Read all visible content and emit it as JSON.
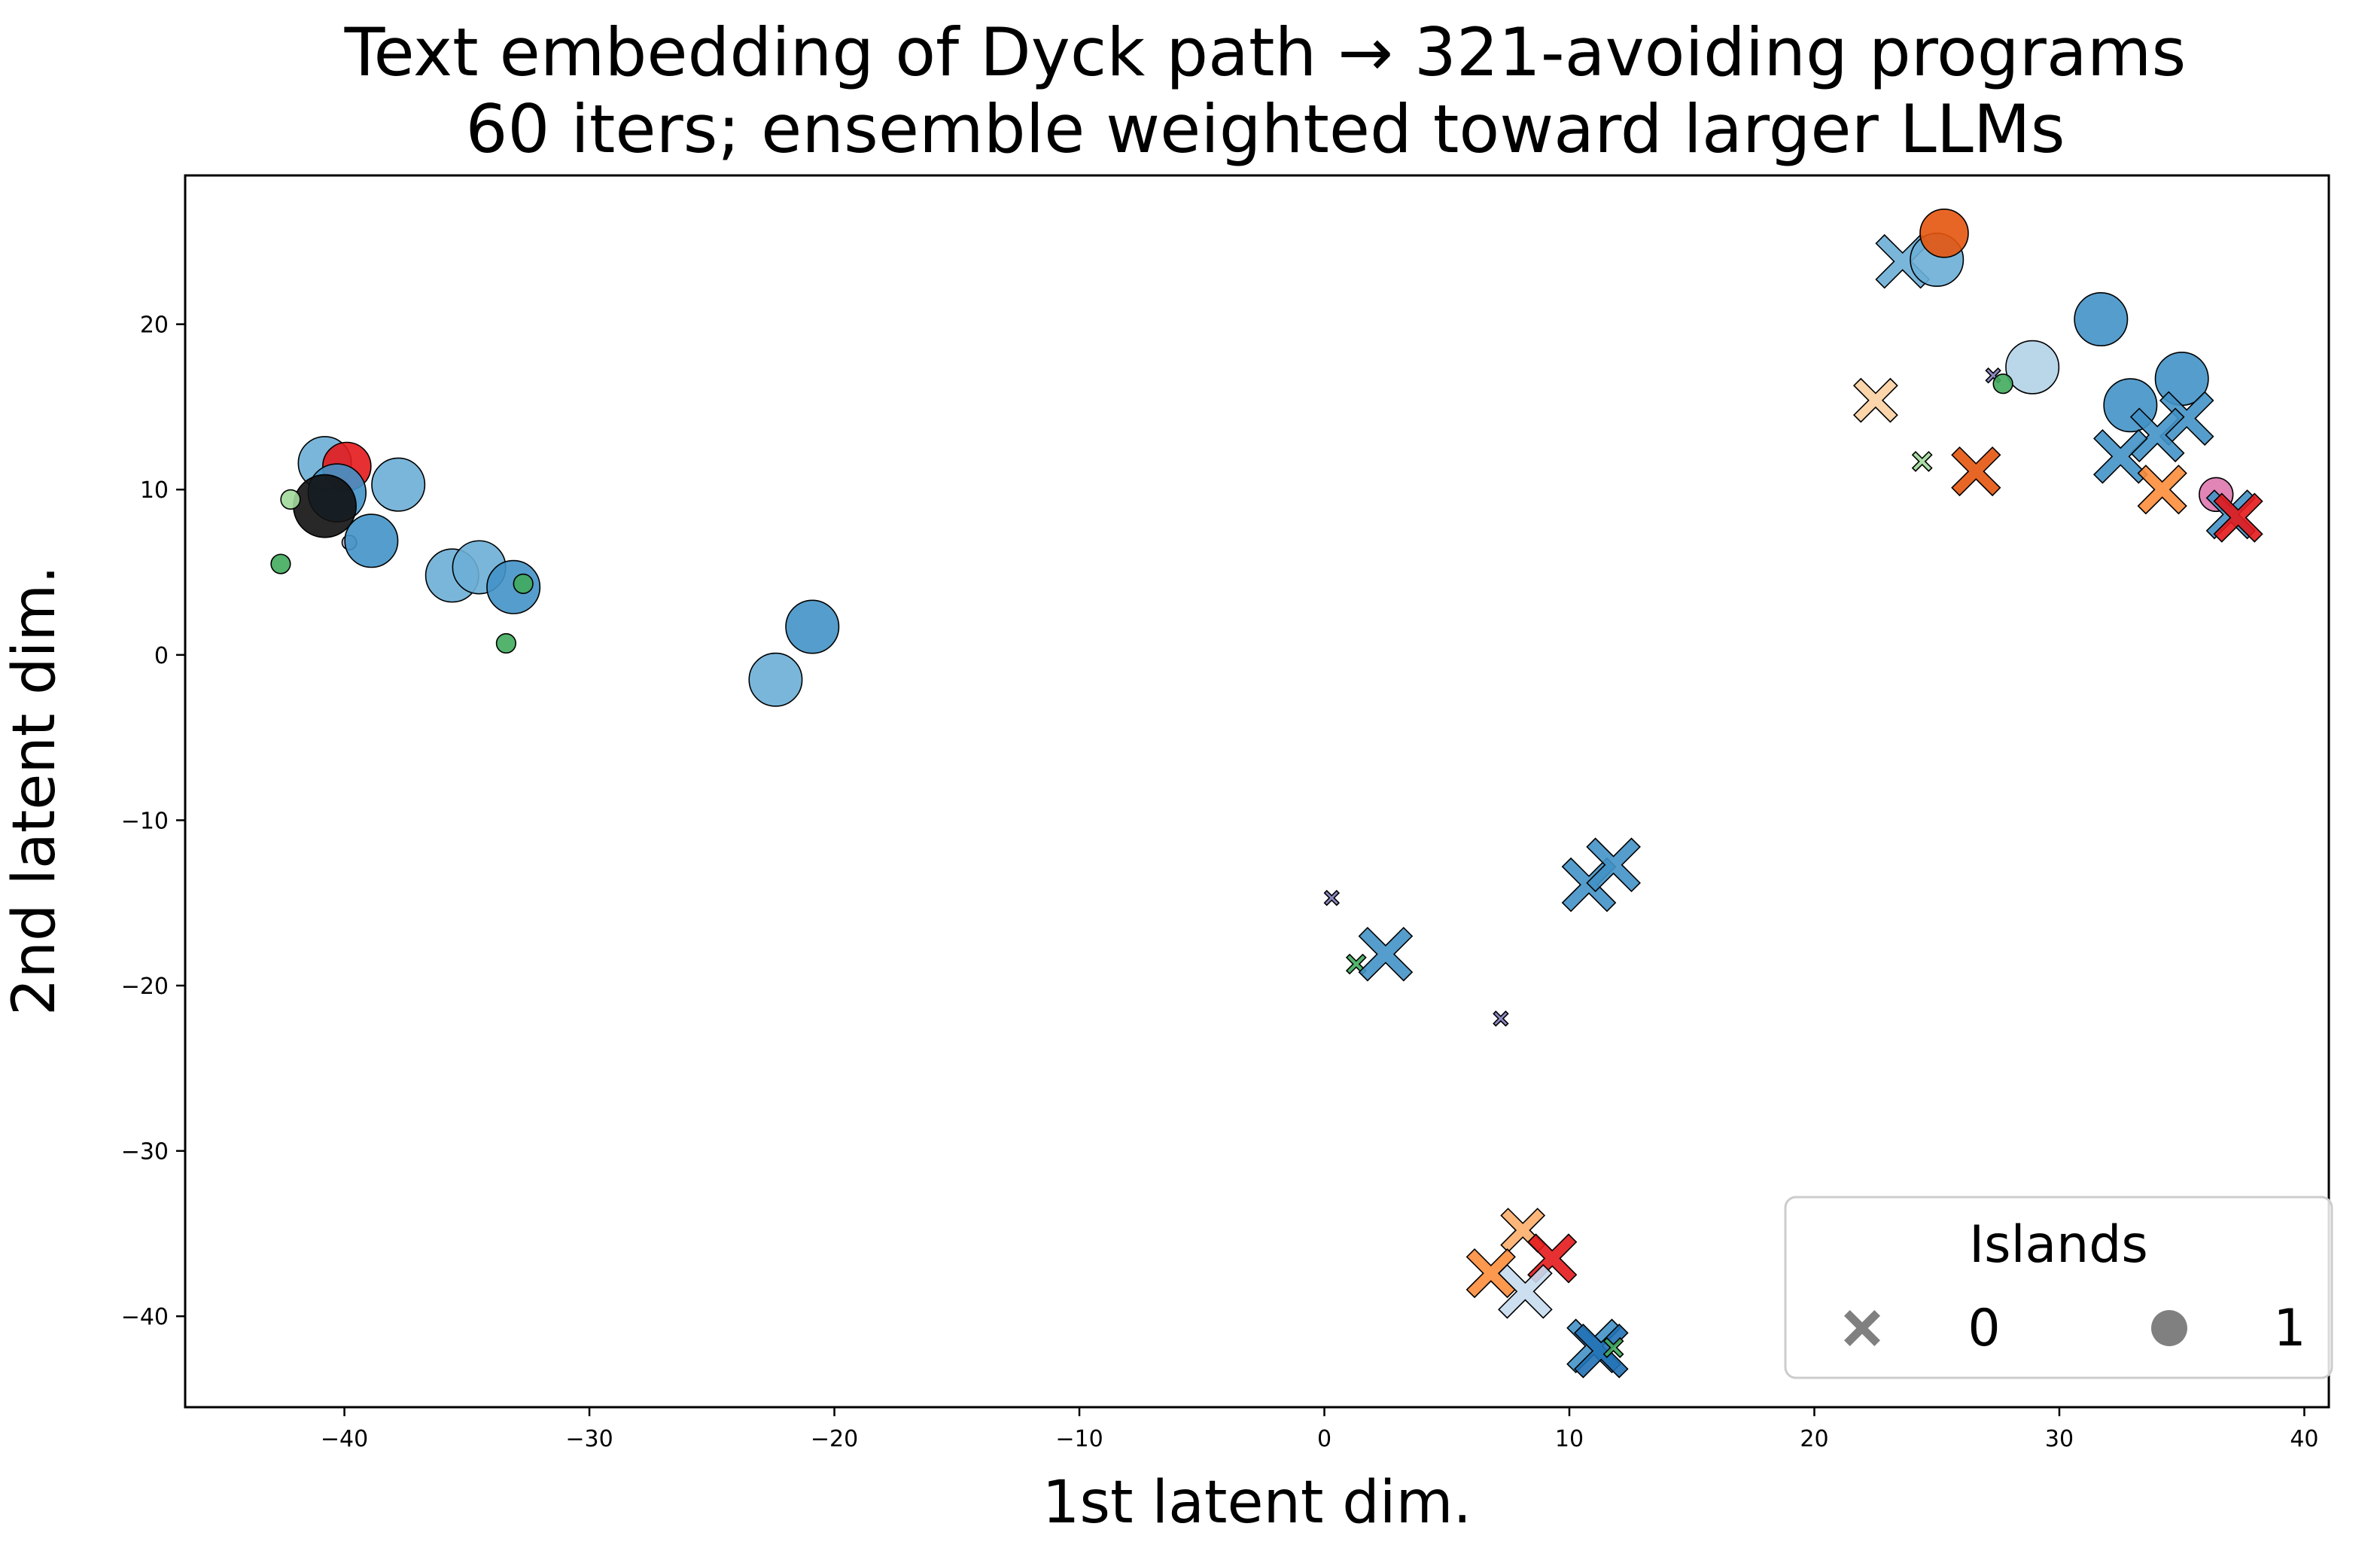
{
  "chart_data": {
    "type": "scatter",
    "title_lines": [
      "Text embedding of Dyck path → 321-avoiding programs",
      "60 iters; ensemble weighted toward larger LLMs"
    ],
    "xlabel": "1st latent dim.",
    "ylabel": "2nd latent dim.",
    "xlim": [
      -46.5,
      41
    ],
    "ylim": [
      -45.5,
      29
    ],
    "xticks": [
      -40,
      -30,
      -20,
      -10,
      0,
      10,
      20,
      30,
      40
    ],
    "yticks": [
      -40,
      -30,
      -20,
      -10,
      0,
      10,
      20
    ],
    "grid": false,
    "legend": {
      "title": "Islands",
      "placement": "lower-right",
      "entries": [
        {
          "label": "0",
          "marker": "x"
        },
        {
          "label": "1",
          "marker": "o"
        }
      ],
      "color": "#808080"
    },
    "points": [
      {
        "x": -40.8,
        "y": 11.6,
        "island": 1,
        "size": 11,
        "color": "#6baed6"
      },
      {
        "x": -39.9,
        "y": 11.4,
        "island": 1,
        "size": 10,
        "color": "#e41a1c"
      },
      {
        "x": -40.3,
        "y": 9.8,
        "island": 1,
        "size": 12,
        "color": "#4292c6"
      },
      {
        "x": -37.8,
        "y": 10.3,
        "island": 1,
        "size": 11,
        "color": "#6baed6"
      },
      {
        "x": -40.8,
        "y": 9.0,
        "island": 1,
        "size": 13,
        "color": "#111111"
      },
      {
        "x": -42.2,
        "y": 9.4,
        "island": 1,
        "size": 4,
        "color": "#a1d99b"
      },
      {
        "x": -39.8,
        "y": 6.8,
        "island": 1,
        "size": 3,
        "color": "#bcbddc"
      },
      {
        "x": -38.9,
        "y": 6.9,
        "island": 1,
        "size": 11,
        "color": "#4292c6"
      },
      {
        "x": -42.6,
        "y": 5.5,
        "island": 1,
        "size": 4,
        "color": "#41ab5d"
      },
      {
        "x": -35.6,
        "y": 4.8,
        "island": 1,
        "size": 11,
        "color": "#6baed6"
      },
      {
        "x": -34.5,
        "y": 5.3,
        "island": 1,
        "size": 11,
        "color": "#6baed6"
      },
      {
        "x": -33.1,
        "y": 4.1,
        "island": 1,
        "size": 11,
        "color": "#4292c6"
      },
      {
        "x": -32.7,
        "y": 4.3,
        "island": 1,
        "size": 4,
        "color": "#41ab5d"
      },
      {
        "x": -33.4,
        "y": 0.7,
        "island": 1,
        "size": 4,
        "color": "#41ab5d"
      },
      {
        "x": -20.9,
        "y": 1.7,
        "island": 1,
        "size": 11,
        "color": "#4292c6"
      },
      {
        "x": -22.4,
        "y": -1.5,
        "island": 1,
        "size": 11,
        "color": "#6baed6"
      },
      {
        "x": 23.6,
        "y": 23.8,
        "island": 0,
        "size": 11,
        "color": "#6baed6"
      },
      {
        "x": 25.0,
        "y": 23.9,
        "island": 1,
        "size": 11,
        "color": "#6baed6"
      },
      {
        "x": 25.3,
        "y": 25.5,
        "island": 1,
        "size": 10,
        "color": "#e6550d"
      },
      {
        "x": 31.7,
        "y": 20.3,
        "island": 1,
        "size": 11,
        "color": "#4292c6"
      },
      {
        "x": 28.9,
        "y": 17.4,
        "island": 1,
        "size": 11,
        "color": "#b3d3e8"
      },
      {
        "x": 27.3,
        "y": 16.9,
        "island": 0,
        "size": 3,
        "color": "#807dba"
      },
      {
        "x": 27.7,
        "y": 16.4,
        "island": 1,
        "size": 4,
        "color": "#41ab5d"
      },
      {
        "x": 22.5,
        "y": 15.4,
        "island": 0,
        "size": 9,
        "color": "#fdd0a2"
      },
      {
        "x": 32.9,
        "y": 15.1,
        "island": 1,
        "size": 11,
        "color": "#4292c6"
      },
      {
        "x": 35.0,
        "y": 16.7,
        "island": 1,
        "size": 11,
        "color": "#4292c6"
      },
      {
        "x": 35.2,
        "y": 14.3,
        "island": 0,
        "size": 11,
        "color": "#4292c6"
      },
      {
        "x": 34.0,
        "y": 13.3,
        "island": 0,
        "size": 11,
        "color": "#4292c6"
      },
      {
        "x": 32.5,
        "y": 12.0,
        "island": 0,
        "size": 11,
        "color": "#4292c6"
      },
      {
        "x": 24.4,
        "y": 11.7,
        "island": 0,
        "size": 4,
        "color": "#a1d99b"
      },
      {
        "x": 26.6,
        "y": 11.1,
        "island": 0,
        "size": 10,
        "color": "#e6550d"
      },
      {
        "x": 34.2,
        "y": 10.0,
        "island": 0,
        "size": 10,
        "color": "#fd8d3c"
      },
      {
        "x": 36.4,
        "y": 9.7,
        "island": 1,
        "size": 7,
        "color": "#de77ae"
      },
      {
        "x": 37.0,
        "y": 8.5,
        "island": 0,
        "size": 10,
        "color": "#4292c6"
      },
      {
        "x": 37.3,
        "y": 8.3,
        "island": 0,
        "size": 10,
        "color": "#e41a1c"
      },
      {
        "x": 0.3,
        "y": -14.7,
        "island": 0,
        "size": 3,
        "color": "#807dba"
      },
      {
        "x": 1.3,
        "y": -18.7,
        "island": 0,
        "size": 4,
        "color": "#41ab5d"
      },
      {
        "x": 2.5,
        "y": -18.1,
        "island": 0,
        "size": 11,
        "color": "#4292c6"
      },
      {
        "x": 10.8,
        "y": -13.9,
        "island": 0,
        "size": 11,
        "color": "#4292c6"
      },
      {
        "x": 11.8,
        "y": -12.7,
        "island": 0,
        "size": 11,
        "color": "#4292c6"
      },
      {
        "x": 7.2,
        "y": -22.0,
        "island": 0,
        "size": 3,
        "color": "#807dba"
      },
      {
        "x": 8.1,
        "y": -34.8,
        "island": 0,
        "size": 9,
        "color": "#fdae6b"
      },
      {
        "x": 6.8,
        "y": -37.4,
        "island": 0,
        "size": 10,
        "color": "#fd8d3c"
      },
      {
        "x": 9.3,
        "y": -36.5,
        "island": 0,
        "size": 10,
        "color": "#e41a1c"
      },
      {
        "x": 8.2,
        "y": -38.5,
        "island": 0,
        "size": 11,
        "color": "#c6dbef"
      },
      {
        "x": 11.0,
        "y": -41.8,
        "island": 0,
        "size": 11,
        "color": "#4292c6"
      },
      {
        "x": 11.3,
        "y": -42.1,
        "island": 0,
        "size": 11,
        "color": "#2171b5"
      },
      {
        "x": 11.8,
        "y": -41.9,
        "island": 0,
        "size": 4,
        "color": "#41ab5d"
      }
    ]
  }
}
